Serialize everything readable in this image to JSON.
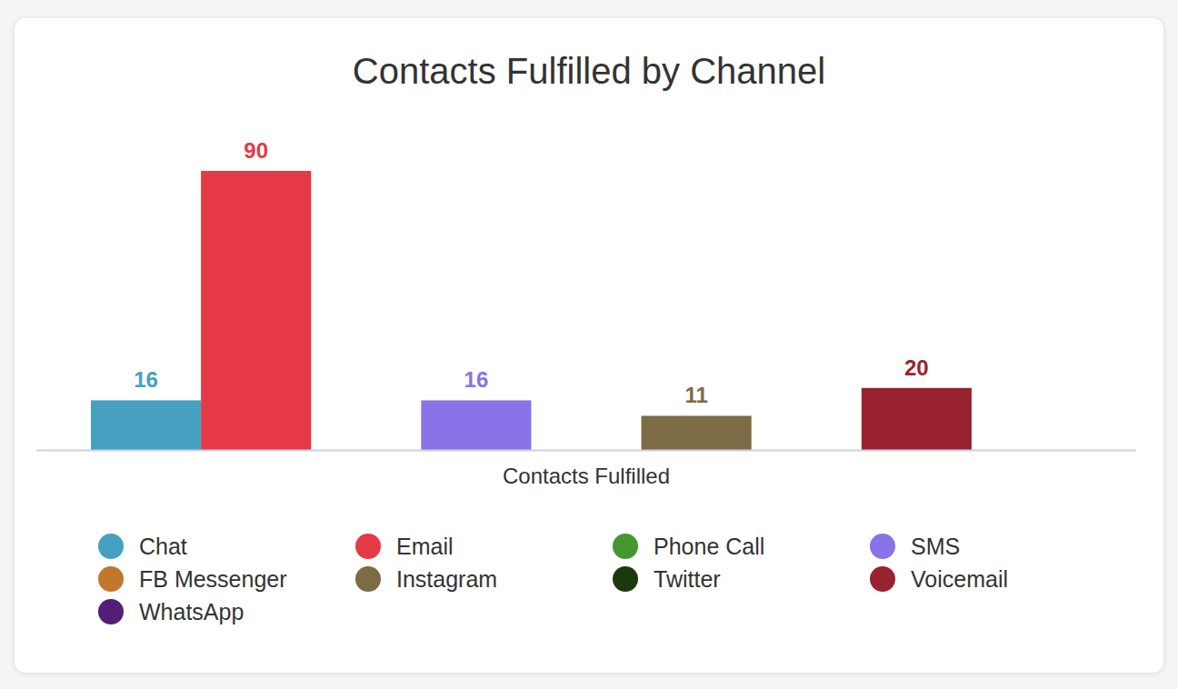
{
  "chart_data": {
    "type": "bar",
    "title": "Contacts Fulfilled by Channel",
    "categories": [
      "Contacts Fulfilled"
    ],
    "series": [
      {
        "name": "Chat",
        "color": "#45a1bf",
        "values": [
          16
        ]
      },
      {
        "name": "Email",
        "color": "#e63946",
        "values": [
          90
        ]
      },
      {
        "name": "Phone Call",
        "color": "#43982f",
        "values": [
          null
        ]
      },
      {
        "name": "SMS",
        "color": "#8a72e8",
        "values": [
          16
        ]
      },
      {
        "name": "FB Messenger",
        "color": "#c2782c",
        "values": [
          null
        ]
      },
      {
        "name": "Instagram",
        "color": "#7d6b45",
        "values": [
          11
        ]
      },
      {
        "name": "Twitter",
        "color": "#1a3a0e",
        "values": [
          null
        ]
      },
      {
        "name": "Voicemail",
        "color": "#982230",
        "values": [
          20
        ]
      },
      {
        "name": "WhatsApp",
        "color": "#521e78",
        "values": [
          null
        ]
      }
    ],
    "ylim": [
      0,
      90
    ],
    "grid": false,
    "data_labels": true,
    "tick_labels": "x",
    "legend": "bottom"
  }
}
